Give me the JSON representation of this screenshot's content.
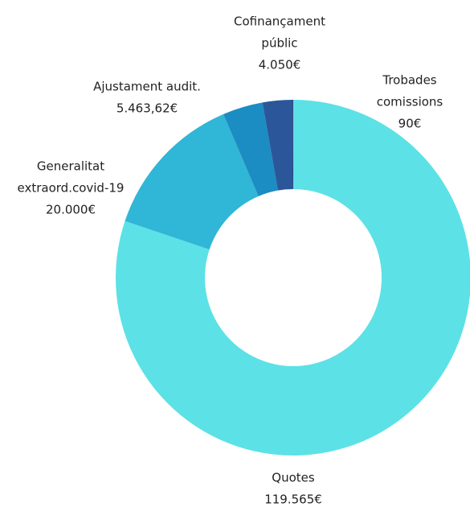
{
  "chart_data": {
    "type": "donut",
    "categories": [
      [
        "Quotes"
      ],
      [
        "Generalitat",
        "extraord.covid-19"
      ],
      [
        "Ajustament audit."
      ],
      [
        "Cofinançament",
        "públic"
      ],
      [
        "Trobades",
        "comissions"
      ]
    ],
    "values": [
      119565,
      20000,
      5463.62,
      4050,
      90
    ],
    "value_labels": [
      "119.565€",
      "20.000€",
      "5.463,62€",
      "4.050€",
      "90€"
    ],
    "colors": [
      "#5ce1e6",
      "#30b6d6",
      "#1b8dc2",
      "#2b579a",
      "#1f2a6b"
    ]
  }
}
